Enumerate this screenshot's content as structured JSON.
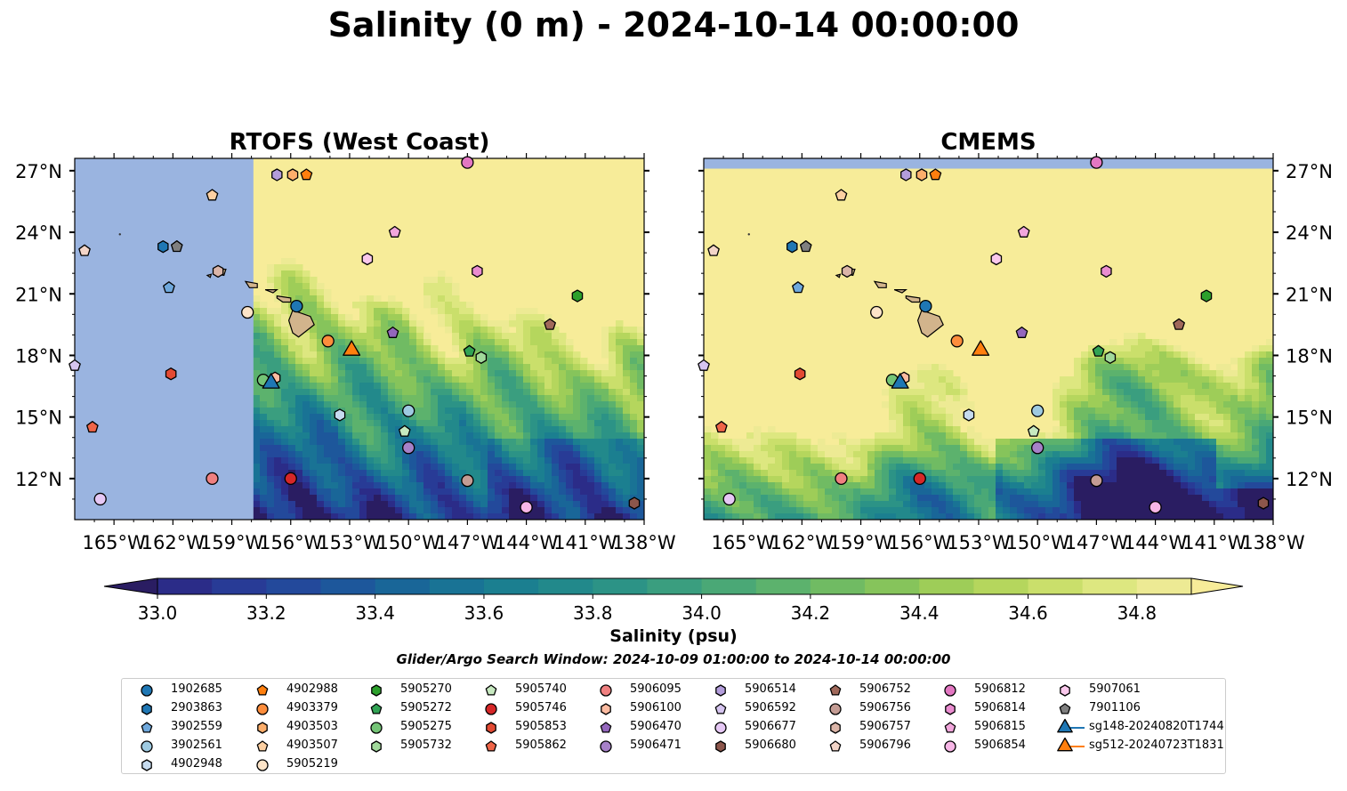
{
  "title": "Salinity (0 m) - 2024-10-14 00:00:00",
  "chart_data": [
    {
      "type": "heatmap",
      "title": "RTOFS (West Coast)",
      "xlabel": "",
      "ylabel": "",
      "xlim": [
        -167,
        -138
      ],
      "ylim": [
        10,
        27.6
      ],
      "x_ticks": [
        "165°W",
        "162°W",
        "159°W",
        "156°W",
        "153°W",
        "150°W",
        "147°W",
        "144°W",
        "141°W",
        "138°W"
      ],
      "y_ticks": [
        "12°N",
        "15°N",
        "18°N",
        "21°N",
        "24°N",
        "27°N"
      ],
      "coverage_note": "model has no data west of about 157.9°W (shaded blue)",
      "field_min_east": 33.5,
      "fresh_area_color": "#9ab4e0",
      "land_color": "#d2b48c"
    },
    {
      "type": "heatmap",
      "title": "CMEMS",
      "xlabel": "",
      "ylabel": "",
      "xlim": [
        -167,
        -138
      ],
      "ylim": [
        10,
        27.6
      ],
      "x_ticks": [
        "165°W",
        "162°W",
        "159°W",
        "156°W",
        "153°W",
        "150°W",
        "147°W",
        "144°W",
        "141°W",
        "138°W"
      ],
      "y_ticks": [
        "12°N",
        "15°N",
        "18°N",
        "21°N",
        "24°N",
        "27°N"
      ],
      "coverage_note": "no data north of about 27.1°N (shaded blue)",
      "field_min": 33.1,
      "land_color": "#d2b48c"
    }
  ],
  "colorbar": {
    "label": "Salinity (psu)",
    "vmin": 33.0,
    "vmax": 34.9,
    "step": 0.1,
    "ticks": [
      "33.0",
      "33.2",
      "33.4",
      "33.6",
      "33.8",
      "34.0",
      "34.2",
      "34.4",
      "34.6",
      "34.8"
    ],
    "extend": "both",
    "colors": [
      "#2a1d62",
      "#2b2c88",
      "#283b96",
      "#23499b",
      "#1d579b",
      "#196698",
      "#197395",
      "#1b7f90",
      "#22898b",
      "#2c9386",
      "#3a9e7f",
      "#4aa876",
      "#5cb26d",
      "#70bb63",
      "#86c45b",
      "#9ecd58",
      "#b5d65d",
      "#cadf6b",
      "#dde780",
      "#edea94",
      "#f7ec99"
    ]
  },
  "search_window": "Glider/Argo Search Window: 2024-10-09 01:00:00 to 2024-10-14 00:00:00",
  "floats": [
    {
      "id": "1902685",
      "marker": "circle",
      "color": "#1f77b4",
      "lon": -155.7,
      "lat": 20.4
    },
    {
      "id": "2903863",
      "marker": "hexagon",
      "color": "#1f77b4",
      "lon": -162.5,
      "lat": 23.3
    },
    {
      "id": "3902559",
      "marker": "pentagon",
      "color": "#6fa8dc",
      "lon": -162.2,
      "lat": 21.3
    },
    {
      "id": "3902561",
      "marker": "circle",
      "color": "#9ecae1",
      "lon": -150.0,
      "lat": 15.3
    },
    {
      "id": "4902948",
      "marker": "hexagon",
      "color": "#c6dbef",
      "lon": -153.5,
      "lat": 15.1
    },
    {
      "id": "4902988",
      "marker": "pentagon",
      "color": "#ff7f0e",
      "lon": -155.2,
      "lat": 26.8
    },
    {
      "id": "4903379",
      "marker": "circle",
      "color": "#fd8d3c",
      "lon": -154.1,
      "lat": 18.7
    },
    {
      "id": "4903503",
      "marker": "hexagon",
      "color": "#fdae6b",
      "lon": -155.9,
      "lat": 26.8
    },
    {
      "id": "4903507",
      "marker": "pentagon",
      "color": "#fdd0a2",
      "lon": -160.0,
      "lat": 25.8
    },
    {
      "id": "5905219",
      "marker": "circle",
      "color": "#fde4c8",
      "lon": -158.2,
      "lat": 20.1
    },
    {
      "id": "5905270",
      "marker": "hexagon",
      "color": "#2ca02c",
      "lon": -141.4,
      "lat": 20.9
    },
    {
      "id": "5905272",
      "marker": "pentagon",
      "color": "#31a354",
      "lon": -146.9,
      "lat": 18.2
    },
    {
      "id": "5905275",
      "marker": "circle",
      "color": "#74c476",
      "lon": -157.4,
      "lat": 16.8
    },
    {
      "id": "5905732",
      "marker": "hexagon",
      "color": "#a1d99b",
      "lon": -146.3,
      "lat": 17.9
    },
    {
      "id": "5905740",
      "marker": "pentagon",
      "color": "#c7e9c0",
      "lon": -150.2,
      "lat": 14.3
    },
    {
      "id": "5905746",
      "marker": "circle",
      "color": "#d62728",
      "lon": -156.0,
      "lat": 12.0
    },
    {
      "id": "5905853",
      "marker": "hexagon",
      "color": "#e34a33",
      "lon": -162.1,
      "lat": 17.1
    },
    {
      "id": "5905862",
      "marker": "pentagon",
      "color": "#ef6548",
      "lon": -166.1,
      "lat": 14.5
    },
    {
      "id": "5906095",
      "marker": "circle",
      "color": "#f08080",
      "lon": -160.0,
      "lat": 12.0
    },
    {
      "id": "5906100",
      "marker": "hexagon",
      "color": "#fcbba1",
      "lon": -156.8,
      "lat": 16.9
    },
    {
      "id": "5906470",
      "marker": "pentagon",
      "color": "#9467bd",
      "lon": -150.8,
      "lat": 19.1
    },
    {
      "id": "5906471",
      "marker": "circle",
      "color": "#a681c8",
      "lon": -150.0,
      "lat": 13.5
    },
    {
      "id": "5906514",
      "marker": "hexagon",
      "color": "#b39ddb",
      "lon": -156.7,
      "lat": 26.8
    },
    {
      "id": "5906592",
      "marker": "pentagon",
      "color": "#d6c5f0",
      "lon": -167.0,
      "lat": 17.5
    },
    {
      "id": "5906677",
      "marker": "circle",
      "color": "#e6c8f5",
      "lon": -165.7,
      "lat": 11.0
    },
    {
      "id": "5906680",
      "marker": "hexagon",
      "color": "#8c564b",
      "lon": -138.5,
      "lat": 10.8
    },
    {
      "id": "5906752",
      "marker": "pentagon",
      "color": "#a0685a",
      "lon": -142.8,
      "lat": 19.5
    },
    {
      "id": "5906756",
      "marker": "circle",
      "color": "#c49c94",
      "lon": -147.0,
      "lat": 11.9
    },
    {
      "id": "5906757",
      "marker": "hexagon",
      "color": "#dbb5a8",
      "lon": -159.7,
      "lat": 22.1
    },
    {
      "id": "5906796",
      "marker": "pentagon",
      "color": "#f3d5c8",
      "lon": -166.5,
      "lat": 23.1
    },
    {
      "id": "5906812",
      "marker": "circle",
      "color": "#e377c2",
      "lon": -147.0,
      "lat": 27.4
    },
    {
      "id": "5906814",
      "marker": "hexagon",
      "color": "#ea8cd0",
      "lon": -146.5,
      "lat": 22.1
    },
    {
      "id": "5906815",
      "marker": "pentagon",
      "color": "#f2a6dc",
      "lon": -150.7,
      "lat": 24.0
    },
    {
      "id": "5906854",
      "marker": "circle",
      "color": "#f7b6e6",
      "lon": -144.0,
      "lat": 10.6
    },
    {
      "id": "5907061",
      "marker": "hexagon",
      "color": "#fac8ec",
      "lon": -152.1,
      "lat": 22.7
    },
    {
      "id": "7901106",
      "marker": "pentagon",
      "color": "#7f7f7f",
      "lon": -161.8,
      "lat": 23.3
    }
  ],
  "gliders": [
    {
      "id": "sg148-20240820T1744",
      "marker": "triangle",
      "color": "#1f77b4",
      "lon": -157.0,
      "lat": 16.6
    },
    {
      "id": "sg512-20240723T1831",
      "marker": "triangle",
      "color": "#ff7f0e",
      "lon": -152.9,
      "lat": 18.2
    }
  ]
}
